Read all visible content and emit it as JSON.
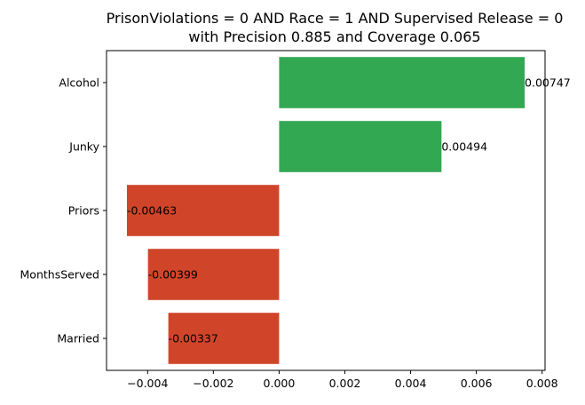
{
  "chart_data": {
    "type": "bar",
    "orientation": "horizontal",
    "title_lines": [
      "PrisonViolations = 0 AND Race = 1 AND Supervised Release = 0",
      "with Precision 0.885 and Coverage 0.065"
    ],
    "categories": [
      "Alcohol",
      "Junky",
      "Priors",
      "MonthsServed",
      "Married"
    ],
    "values": [
      0.00747,
      0.00494,
      -0.00463,
      -0.00399,
      -0.00337
    ],
    "value_labels": [
      "0.00747",
      "0.00494",
      "-0.00463",
      "-0.00399",
      "-0.00337"
    ],
    "xlim": [
      -0.00525,
      0.00809
    ],
    "x_ticks": [
      -0.004,
      -0.002,
      0.0,
      0.002,
      0.004,
      0.006,
      0.008
    ],
    "x_tick_labels": [
      "−0.004",
      "−0.002",
      "0.000",
      "0.002",
      "0.004",
      "0.006",
      "0.008"
    ],
    "xlabel": "",
    "ylabel": "",
    "grid": false,
    "colors": {
      "positive": "#33a853",
      "negative": "#d0452a"
    }
  }
}
